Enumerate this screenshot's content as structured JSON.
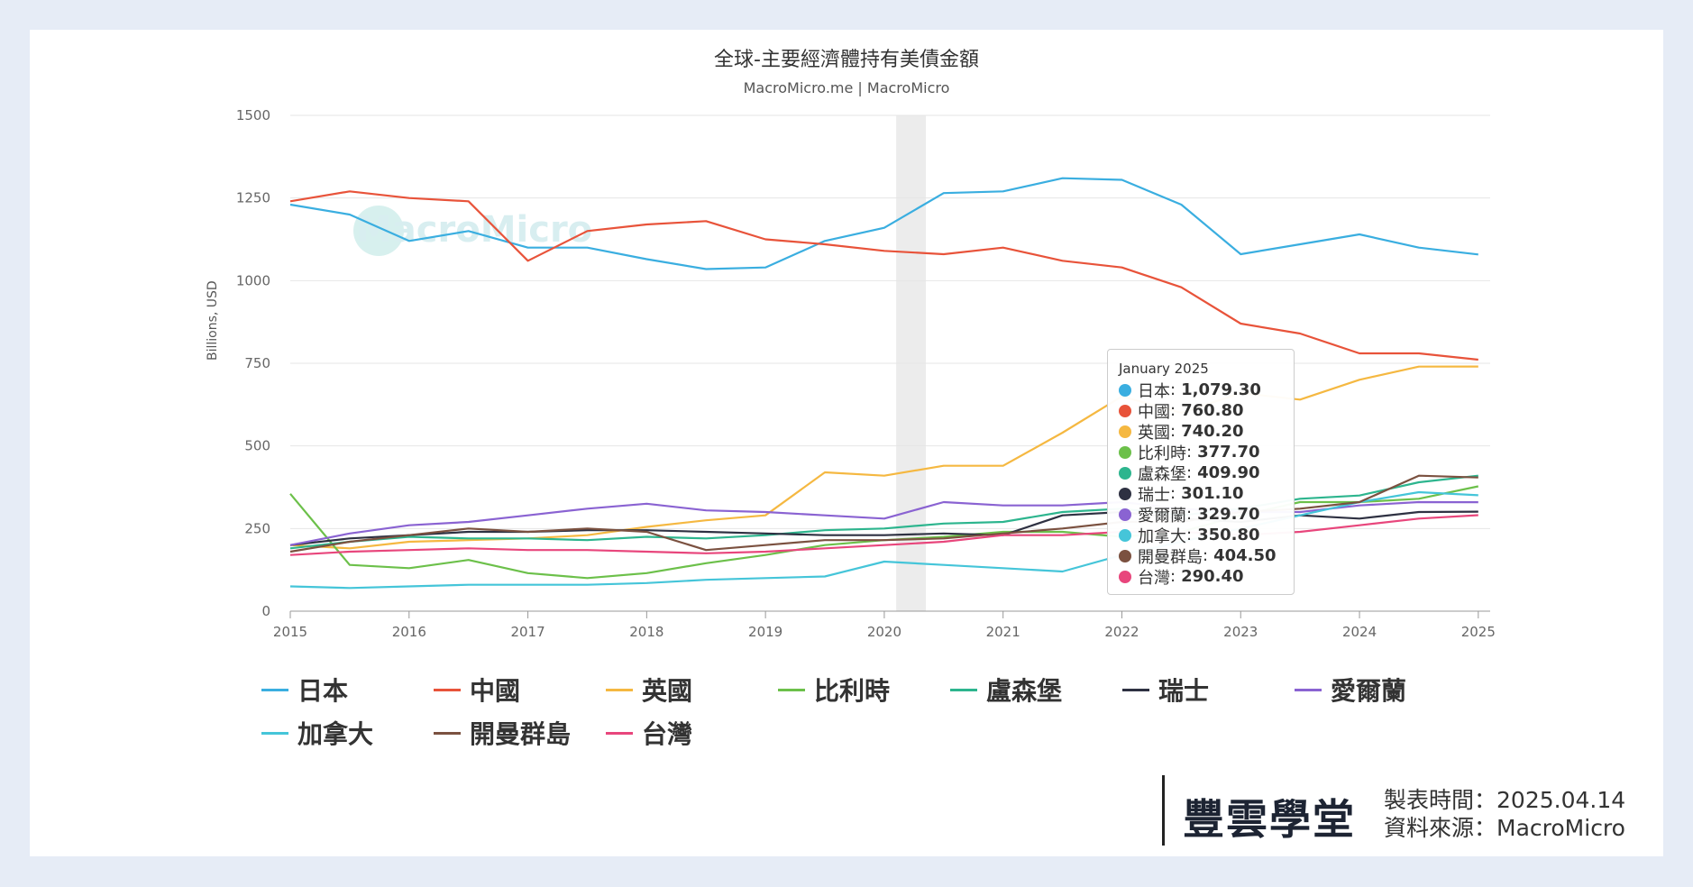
{
  "chart_data": {
    "type": "line",
    "title": "全球-主要經濟體持有美債金額",
    "subtitle": "MacroMicro.me | MacroMicro",
    "ylabel": "Billions, USD",
    "xlabel": "",
    "ylim": [
      0,
      1500
    ],
    "xlim": [
      2015,
      2025.1
    ],
    "yticks": [
      "0",
      "250",
      "500",
      "750",
      "1000",
      "1250",
      "1500"
    ],
    "xticks": [
      "2015",
      "2016",
      "2017",
      "2018",
      "2019",
      "2020",
      "2021",
      "2022",
      "2023",
      "2024",
      "2025"
    ],
    "grid": true,
    "legend_position": "bottom",
    "shaded_region": [
      2020.1,
      2020.35
    ],
    "watermark": "MacroMicro",
    "x": [
      2015,
      2015.5,
      2016,
      2016.5,
      2017,
      2017.5,
      2018,
      2018.5,
      2019,
      2019.5,
      2020,
      2020.5,
      2021,
      2021.5,
      2022,
      2022.5,
      2023,
      2023.5,
      2024,
      2024.5,
      2025
    ],
    "series": [
      {
        "name": "日本",
        "color": "#3aaee0",
        "values": [
          1230,
          1200,
          1120,
          1150,
          1100,
          1100,
          1065,
          1035,
          1040,
          1120,
          1160,
          1265,
          1270,
          1310,
          1305,
          1230,
          1080,
          1110,
          1140,
          1100,
          1079.3
        ]
      },
      {
        "name": "中國",
        "color": "#e8533a",
        "values": [
          1240,
          1270,
          1250,
          1240,
          1060,
          1150,
          1170,
          1180,
          1125,
          1110,
          1090,
          1080,
          1100,
          1060,
          1040,
          980,
          870,
          840,
          780,
          780,
          760.8
        ]
      },
      {
        "name": "英國",
        "color": "#f5b841",
        "values": [
          200,
          190,
          210,
          215,
          220,
          230,
          255,
          275,
          290,
          420,
          410,
          440,
          440,
          540,
          650,
          600,
          660,
          640,
          700,
          740,
          740.2
        ]
      },
      {
        "name": "比利時",
        "color": "#6cc04a",
        "values": [
          355,
          140,
          130,
          155,
          115,
          100,
          115,
          145,
          170,
          200,
          215,
          225,
          240,
          240,
          225,
          240,
          290,
          330,
          330,
          340,
          377.7
        ]
      },
      {
        "name": "盧森堡",
        "color": "#2db58e",
        "values": [
          190,
          210,
          225,
          220,
          220,
          215,
          225,
          220,
          230,
          245,
          250,
          265,
          270,
          300,
          310,
          290,
          310,
          340,
          350,
          390,
          409.9
        ]
      },
      {
        "name": "瑞士",
        "color": "#2e3142",
        "values": [
          200,
          220,
          230,
          240,
          240,
          245,
          245,
          240,
          235,
          230,
          230,
          235,
          230,
          290,
          300,
          280,
          270,
          290,
          280,
          300,
          301.1
        ]
      },
      {
        "name": "愛爾蘭",
        "color": "#8a63d2",
        "values": [
          200,
          235,
          260,
          270,
          290,
          310,
          325,
          305,
          300,
          290,
          280,
          330,
          320,
          320,
          330,
          310,
          300,
          300,
          320,
          330,
          329.7
        ]
      },
      {
        "name": "加拿大",
        "color": "#45c5d9",
        "values": [
          75,
          70,
          75,
          80,
          80,
          80,
          85,
          95,
          100,
          105,
          150,
          140,
          130,
          120,
          170,
          210,
          250,
          290,
          330,
          360,
          350.8
        ]
      },
      {
        "name": "開曼群島",
        "color": "#7b5140",
        "values": [
          180,
          210,
          230,
          250,
          240,
          250,
          240,
          185,
          200,
          215,
          215,
          220,
          235,
          250,
          270,
          270,
          300,
          310,
          330,
          410,
          404.5
        ]
      },
      {
        "name": "台灣",
        "color": "#e8467c",
        "values": [
          170,
          180,
          185,
          190,
          185,
          185,
          180,
          175,
          180,
          190,
          200,
          210,
          230,
          230,
          240,
          240,
          230,
          240,
          260,
          280,
          290.4
        ]
      }
    ],
    "tooltip": {
      "header": "January 2025",
      "rows": [
        {
          "label": "日本",
          "value": "1,079.30"
        },
        {
          "label": "中國",
          "value": "760.80"
        },
        {
          "label": "英國",
          "value": "740.20"
        },
        {
          "label": "比利時",
          "value": "377.70"
        },
        {
          "label": "盧森堡",
          "value": "409.90"
        },
        {
          "label": "瑞士",
          "value": "301.10"
        },
        {
          "label": "愛爾蘭",
          "value": "329.70"
        },
        {
          "label": "加拿大",
          "value": "350.80"
        },
        {
          "label": "開曼群島",
          "value": "404.50"
        },
        {
          "label": "台灣",
          "value": "290.40"
        }
      ]
    }
  },
  "footer": {
    "logo": "豐雲學堂",
    "made_time_label": "製表時間：",
    "made_time": "2025.04.14",
    "source_label": "資料來源：",
    "source": "MacroMicro"
  }
}
